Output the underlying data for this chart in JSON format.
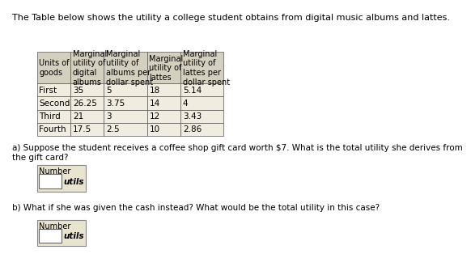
{
  "title": "The Table below shows the utility a college student obtains from digital music albums and lattes.",
  "col_headers": [
    "Units of\ngoods",
    "Marginal\nutility of\ndigital\nalbums",
    "Marginal\nutility of\nalbums per\ndollar spent",
    "Marginal\nutility of\nlattes",
    "Marginal\nutility of\nlattes per\ndollar spent"
  ],
  "rows": [
    [
      "First",
      "35",
      "5",
      "18",
      "5.14"
    ],
    [
      "Second",
      "26.25",
      "3.75",
      "14",
      "4"
    ],
    [
      "Third",
      "21",
      "3",
      "12",
      "3.43"
    ],
    [
      "Fourth",
      "17.5",
      "2.5",
      "10",
      "2.86"
    ]
  ],
  "question_a": "a) Suppose the student receives a coffee shop gift card worth $7. What is the total utility she derives from\nthe gift card?",
  "question_b": "b) What if she was given the cash instead? What would be the total utility in this case?",
  "input_label": "Number",
  "input_unit": "utils",
  "header_bg": "#d4d0c0",
  "row_bg": "#f0ede0",
  "box_bg": "#e8e4d0",
  "font_size": 7.5,
  "title_font_size": 8.0
}
